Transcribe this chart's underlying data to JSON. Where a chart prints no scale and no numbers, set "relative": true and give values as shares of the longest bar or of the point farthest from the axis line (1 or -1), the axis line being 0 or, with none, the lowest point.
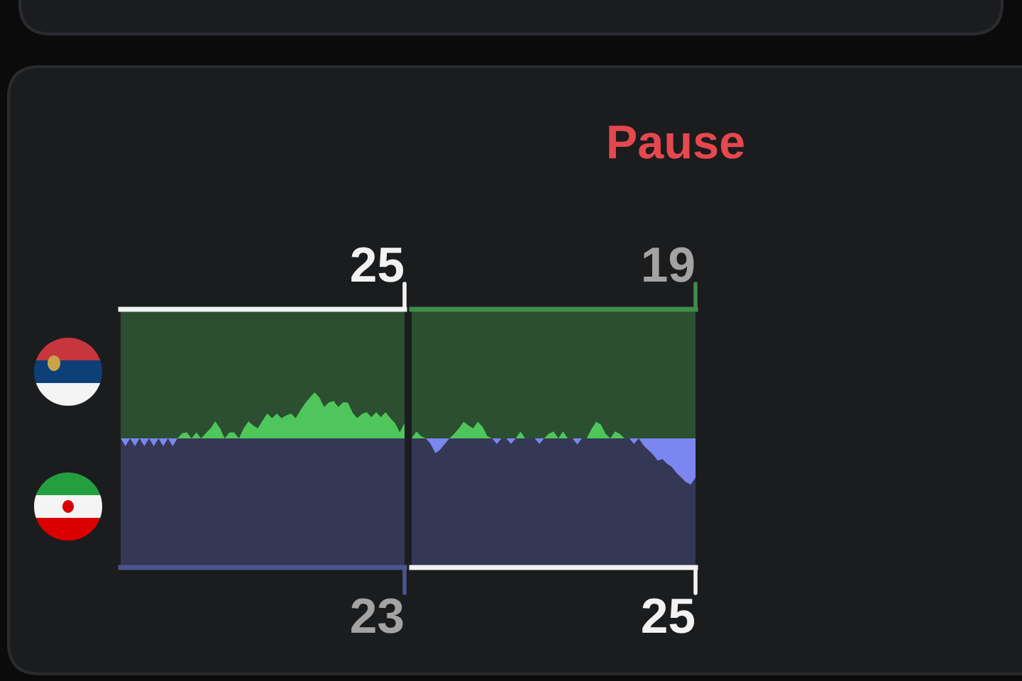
{
  "chart_data": [
    {
      "type": "area",
      "title": "25",
      "xlabel": "23",
      "relative": true,
      "categories": [
        null,
        null,
        null,
        null,
        null,
        null,
        null,
        null,
        null,
        null,
        null,
        null,
        null,
        null,
        null,
        null,
        null,
        null,
        null,
        null,
        null,
        null,
        null,
        null,
        null,
        null,
        null,
        null,
        null,
        null,
        null,
        null,
        null,
        null,
        null,
        null,
        null,
        null,
        null,
        null,
        null,
        null,
        null,
        null,
        null,
        null,
        null,
        null,
        null,
        null,
        null,
        null,
        null,
        null,
        null,
        null,
        null,
        null,
        null,
        null,
        null
      ],
      "series": [
        {
          "color": "#4fc65b",
          "values": [
            0,
            0,
            0,
            0,
            0,
            0,
            0,
            0,
            0,
            0,
            0,
            0,
            0,
            0.11,
            0.13,
            0,
            0.13,
            0,
            0.11,
            0.22,
            0.37,
            0.22,
            0,
            0.13,
            0.13,
            0,
            0.22,
            0.37,
            0.28,
            0.22,
            0.39,
            0.54,
            0.44,
            0.54,
            0.44,
            0.5,
            0.54,
            0.44,
            0.61,
            0.76,
            0.89,
            1,
            0.89,
            0.68,
            0.78,
            0.81,
            0.68,
            0.78,
            0.78,
            0.56,
            0.44,
            0.53,
            0.57,
            0.46,
            0.57,
            0.46,
            0.57,
            0.44,
            0.33,
            0.13,
            0.33
          ]
        },
        {
          "color": "#7c86f0",
          "values": [
            0,
            -0.17,
            0,
            -0.17,
            0,
            -0.17,
            0,
            -0.17,
            0,
            -0.17,
            0,
            -0.17,
            0,
            0,
            0,
            0,
            0,
            0,
            0,
            0,
            0,
            0,
            0,
            0,
            0,
            0,
            0,
            0,
            0,
            0,
            0,
            0,
            0,
            0,
            0,
            0,
            0,
            0,
            0,
            0,
            0,
            0,
            0,
            0,
            0,
            0,
            0,
            0,
            0,
            0,
            0,
            0,
            0,
            0,
            0,
            0,
            0,
            0,
            0,
            0,
            0
          ]
        }
      ]
    },
    {
      "type": "area",
      "title": "19",
      "xlabel": "25",
      "relative": true,
      "annotations": [
        "Pause"
      ],
      "categories": [
        null,
        null,
        null,
        null,
        null,
        null,
        null,
        null,
        null,
        null,
        null,
        null,
        null,
        null,
        null,
        null,
        null,
        null,
        null,
        null,
        null,
        null,
        null,
        null,
        null,
        null,
        null,
        null,
        null,
        null,
        null,
        null,
        null,
        null,
        null,
        null,
        null,
        null,
        null,
        null,
        null,
        null,
        null,
        null,
        null,
        null,
        null,
        null,
        null,
        null,
        null,
        null,
        null,
        null,
        null,
        null,
        null,
        null,
        null,
        null,
        null
      ],
      "series": [
        {
          "color": "#4fc65b",
          "values": [
            0,
            0.15,
            0.05,
            0,
            0,
            0,
            0,
            0,
            0,
            0.1,
            0.22,
            0.36,
            0.28,
            0.22,
            0.36,
            0.25,
            0.05,
            0,
            0,
            0,
            0,
            0,
            0,
            0.15,
            0,
            0,
            0,
            0,
            0,
            0.1,
            0.15,
            0,
            0.15,
            0,
            0,
            0,
            0,
            0,
            0.2,
            0.36,
            0.3,
            0.1,
            0,
            0.15,
            0.1,
            0,
            0,
            0,
            0,
            0,
            0,
            0,
            0,
            0,
            0,
            0,
            0,
            0,
            0,
            0,
            0
          ]
        },
        {
          "color": "#7c86f0",
          "values": [
            0,
            0,
            0,
            0,
            -0.12,
            -0.32,
            -0.25,
            -0.12,
            0,
            0,
            0,
            0,
            0,
            0,
            0,
            0,
            0,
            0,
            -0.12,
            0,
            0,
            -0.12,
            0,
            0,
            0,
            0,
            0,
            -0.12,
            0,
            0,
            0,
            0,
            0,
            0,
            0,
            -0.13,
            0,
            0,
            0,
            0,
            0,
            0,
            0,
            0,
            0,
            0,
            0,
            -0.12,
            0,
            -0.15,
            -0.25,
            -0.35,
            -0.48,
            -0.45,
            -0.55,
            -0.62,
            -0.75,
            -0.85,
            -0.95,
            -1.0,
            -0.85
          ]
        }
      ]
    }
  ]
}
